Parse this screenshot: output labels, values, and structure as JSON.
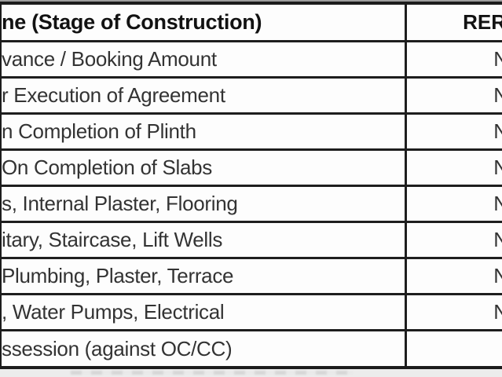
{
  "table": {
    "header": {
      "stage": "ne (Stage of Construction)",
      "value": "RER"
    },
    "rows": [
      {
        "stage": "vance / Booking Amount",
        "value": "N"
      },
      {
        "stage": "r Execution of Agreement",
        "value": "N"
      },
      {
        "stage": "n Completion of Plinth",
        "value": "N"
      },
      {
        "stage": "On Completion of Slabs",
        "value": "N"
      },
      {
        "stage": "s, Internal Plaster, Flooring",
        "value": "N"
      },
      {
        "stage": "itary, Staircase, Lift Wells",
        "value": "N"
      },
      {
        "stage": "Plumbing, Plaster, Terrace",
        "value": "N"
      },
      {
        "stage": ", Water Pumps, Electrical",
        "value": "N"
      },
      {
        "stage": "ssession (against OC/CC)",
        "value": ""
      }
    ]
  },
  "colors": {
    "border": "#1c1c1c",
    "header_text": "#121212",
    "body_text": "#333333",
    "top_strip": "#9e9e9e",
    "bottom_strip": "#ececec",
    "background": "#fdfdfd"
  }
}
